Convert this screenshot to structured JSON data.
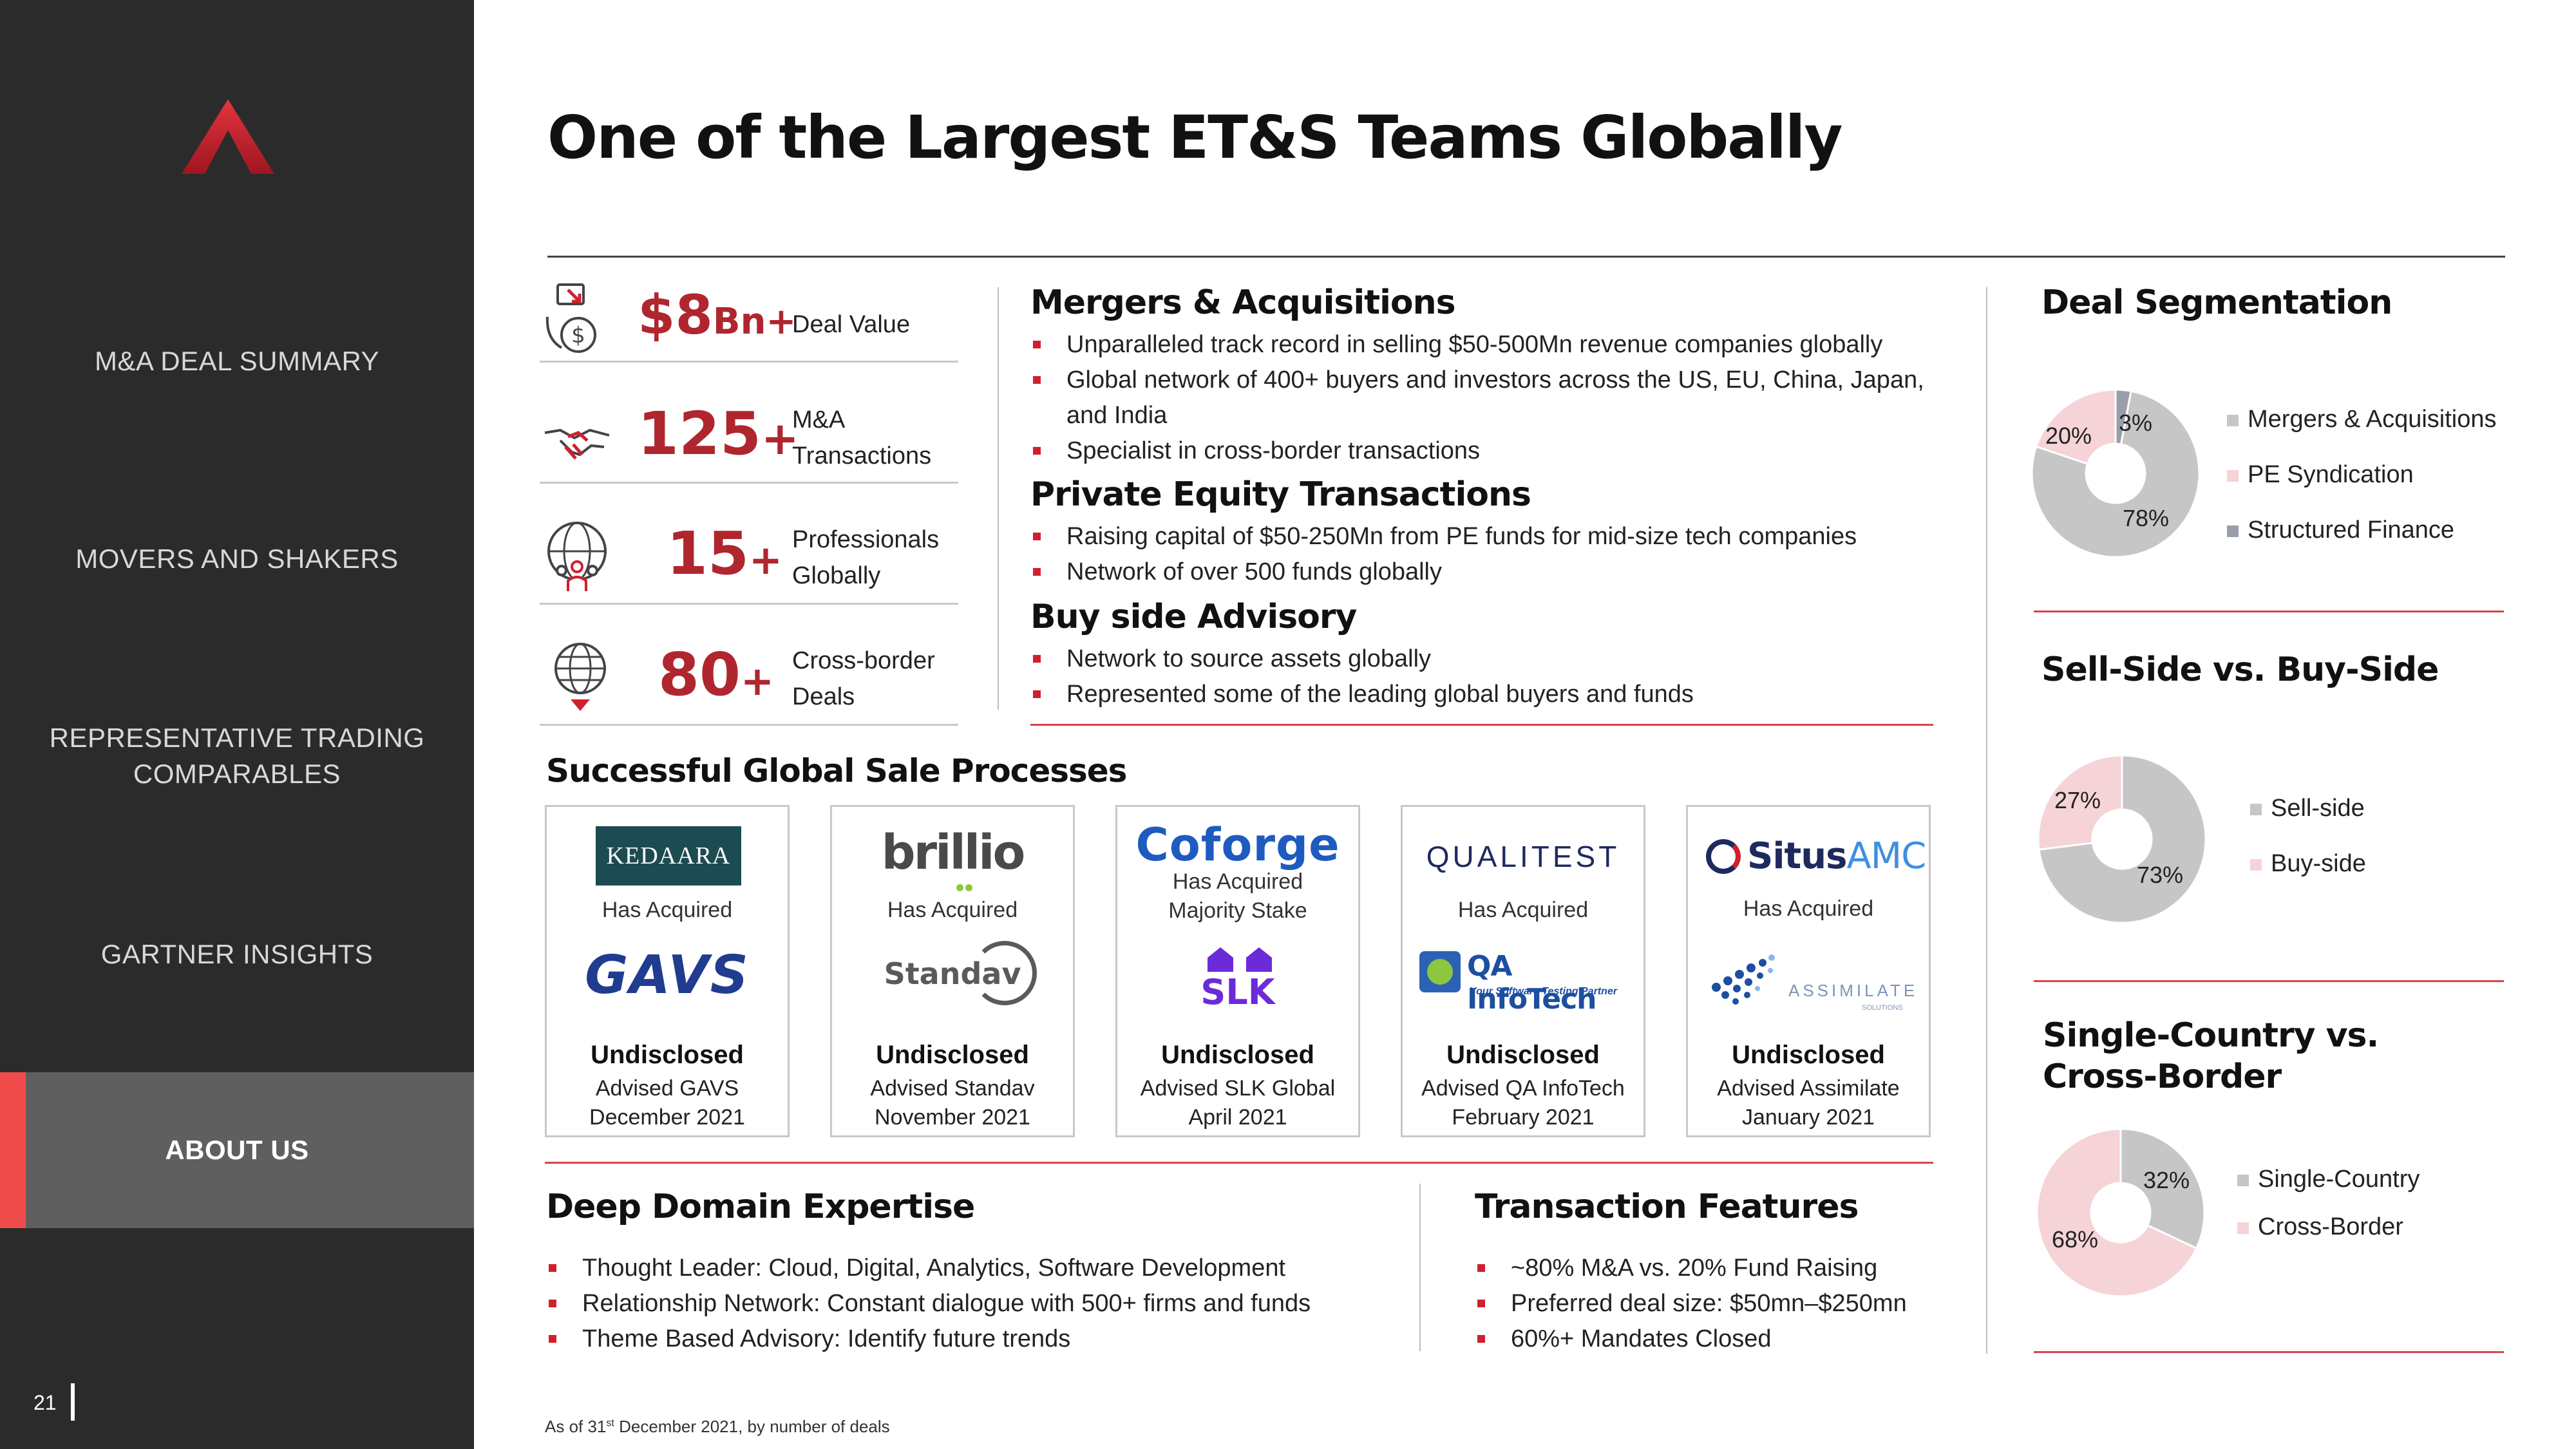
{
  "title": "One of the Largest ET&S Teams Globally",
  "sidebar": {
    "items": [
      {
        "label": "M&A DEAL SUMMARY"
      },
      {
        "label": "MOVERS AND SHAKERS"
      },
      {
        "label": "REPRESENTATIVE TRADING"
      },
      {
        "label": "COMPARABLES"
      },
      {
        "label": "GARTNER INSIGHTS"
      },
      {
        "label": "ABOUT US"
      }
    ],
    "page_number": "21"
  },
  "stats": [
    {
      "number": "$8",
      "suffix": "Bn+",
      "label1": "Deal Value",
      "label2": ""
    },
    {
      "number": "125",
      "suffix": "+",
      "label1": "M&A",
      "label2": "Transactions"
    },
    {
      "number": "15",
      "suffix": "+",
      "label1": "Professionals",
      "label2": "Globally"
    },
    {
      "number": "80",
      "suffix": "+",
      "label1": "Cross-border",
      "label2": "Deals"
    }
  ],
  "ma": {
    "heading": "Mergers & Acquisitions",
    "bullets": [
      "Unparalleled track record in selling $50-500Mn revenue companies globally",
      "Global network of 400+ buyers and investors across the US, EU, China, Japan, and India",
      "Specialist in cross-border transactions"
    ]
  },
  "pe": {
    "heading": "Private Equity Transactions",
    "bullets": [
      "Raising capital of $50-250Mn from PE funds for mid-size tech companies",
      "Network of over 500 funds globally"
    ]
  },
  "buy": {
    "heading": "Buy side Advisory",
    "bullets": [
      "Network to source assets globally",
      "Represented some of the leading global buyers and funds"
    ]
  },
  "sales": {
    "heading": "Successful Global Sale Processes",
    "cards": [
      {
        "buyer": "KEDAARA",
        "acq1": "Has Acquired",
        "acq2": "",
        "target": "GAVS",
        "outcome": "Undisclosed",
        "advised": "Advised GAVS",
        "date": "December 2021"
      },
      {
        "buyer": "brillio",
        "acq1": "Has Acquired",
        "acq2": "",
        "target": "Standav",
        "outcome": "Undisclosed",
        "advised": "Advised Standav",
        "date": "November 2021"
      },
      {
        "buyer": "Coforge",
        "acq1": "Has Acquired",
        "acq2": "Majority Stake",
        "target": "SLK",
        "outcome": "Undisclosed",
        "advised": "Advised SLK Global",
        "date": "April 2021"
      },
      {
        "buyer": "QUALITEST",
        "acq1": "Has Acquired",
        "acq2": "",
        "target": "QA InfoTech",
        "target_tag": "Your Software Testing Partner",
        "outcome": "Undisclosed",
        "advised": "Advised QA InfoTech",
        "date": "February 2021"
      },
      {
        "buyer": "SitusAMC",
        "acq1": "Has Acquired",
        "acq2": "",
        "target": "ASSIMILATE",
        "target_tag": "SOLUTIONS",
        "outcome": "Undisclosed",
        "advised": "Advised Assimilate",
        "date": "January 2021"
      }
    ]
  },
  "domain": {
    "heading": "Deep Domain Expertise",
    "bullets": [
      "Thought Leader: Cloud, Digital, Analytics, Software Development",
      "Relationship Network: Constant dialogue with 500+ firms and funds",
      "Theme Based Advisory: Identify future trends"
    ]
  },
  "features": {
    "heading": "Transaction Features",
    "bullets": [
      "~80% M&A vs. 20% Fund Raising",
      "Preferred deal size: $50mn–$250mn",
      "60%+ Mandates Closed"
    ]
  },
  "footnote": {
    "pre": "As of 31",
    "sup": "st",
    "post": " December 2021, by number of deals"
  },
  "colors": {
    "sidebar": "#2b2b2b",
    "accent": "#d0202e",
    "grey_slice": "#c6c6c6",
    "pink_slice": "#f5d3d7",
    "dark_slice": "#9a9eab"
  },
  "chart_data": [
    {
      "type": "pie",
      "title": "Deal Segmentation",
      "categories": [
        "Mergers & Acquisitions",
        "PE Syndication",
        "Structured Finance"
      ],
      "values": [
        78,
        20,
        3
      ],
      "labels": [
        "78%",
        "20%",
        "3%"
      ],
      "colors": [
        "#c6c6c6",
        "#f5d3d7",
        "#9a9eab"
      ],
      "legend": "right"
    },
    {
      "type": "pie",
      "title": "Sell-Side vs. Buy-Side",
      "categories": [
        "Sell-side",
        "Buy-side"
      ],
      "values": [
        73,
        27
      ],
      "labels": [
        "73%",
        "27%"
      ],
      "colors": [
        "#c6c6c6",
        "#f5d3d7"
      ],
      "legend": "right"
    },
    {
      "type": "pie",
      "title_line1": "Single-Country vs.",
      "title_line2": "Cross-Border",
      "categories": [
        "Single-Country",
        "Cross-Border"
      ],
      "values": [
        32,
        68
      ],
      "labels": [
        "32%",
        "68%"
      ],
      "colors": [
        "#c6c6c6",
        "#f5d3d7"
      ],
      "legend": "right"
    }
  ]
}
